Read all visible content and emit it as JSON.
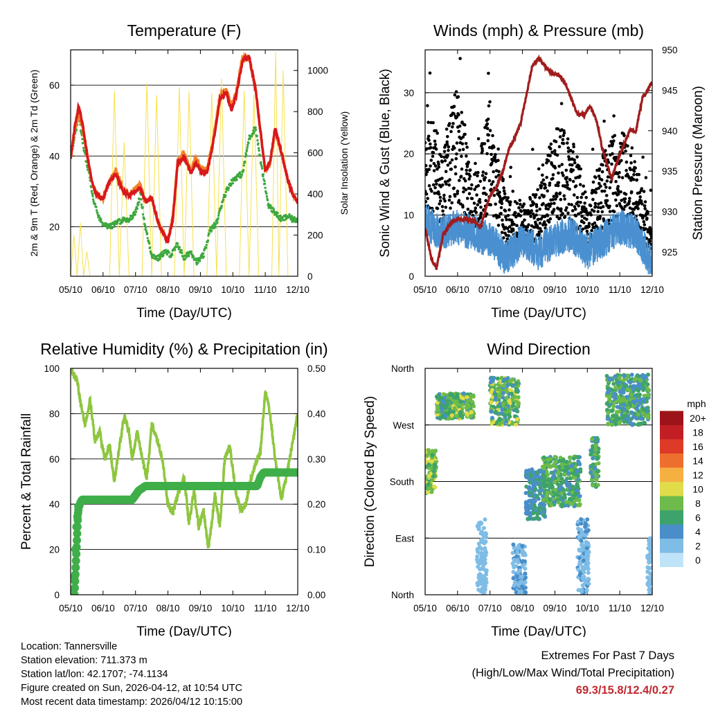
{
  "colors": {
    "temp_2m": "#d7191c",
    "temp_9m": "#f4802a",
    "dewpoint": "#3ea83e",
    "solar": "#f7e04a",
    "wind": "#4a90d0",
    "gust": "#000000",
    "pressure": "#a01c1c",
    "rh": "#8ec63f",
    "precip": "#3fae49"
  },
  "chart_data": [
    {
      "type": "line",
      "title": "Temperature (F)",
      "xlabel": "Time (Day/UTC)",
      "ylabel": "2m & 9m T (Red, Orange) & 2m Td (Green)",
      "y2label": "Solar Insolation (Yellow)",
      "xticks": [
        "05/10",
        "06/10",
        "07/10",
        "08/10",
        "09/10",
        "10/10",
        "11/10",
        "12/10"
      ],
      "xlim": [
        0,
        7
      ],
      "ylim": [
        6,
        70
      ],
      "yticks": [
        20,
        40,
        60
      ],
      "y2lim": [
        0,
        1100
      ],
      "y2ticks": [
        0,
        200,
        400,
        600,
        800,
        1000
      ],
      "series": [
        {
          "name": "2m T",
          "x": [
            0,
            0.12,
            0.25,
            0.35,
            0.5,
            0.65,
            0.8,
            1.0,
            1.2,
            1.4,
            1.6,
            1.8,
            2.0,
            2.15,
            2.3,
            2.5,
            2.7,
            2.85,
            3.0,
            3.15,
            3.3,
            3.5,
            3.7,
            3.85,
            4.0,
            4.2,
            4.4,
            4.6,
            4.8,
            4.95,
            5.1,
            5.3,
            5.5,
            5.7,
            5.85,
            6.0,
            6.15,
            6.3,
            6.5,
            6.7,
            6.85,
            7.0
          ],
          "values": [
            39,
            48,
            54,
            50,
            41,
            33,
            29,
            28,
            33,
            35,
            30,
            29,
            30,
            31,
            27,
            28,
            21,
            18,
            16,
            22,
            38,
            40,
            35,
            38,
            36,
            35,
            44,
            56,
            58,
            53,
            57,
            67,
            68,
            59,
            47,
            36,
            38,
            48,
            41,
            33,
            29,
            27
          ]
        },
        {
          "name": "9m T",
          "x": [
            0,
            0.12,
            0.25,
            0.35,
            0.5,
            0.65,
            0.8,
            1.0,
            1.2,
            1.4,
            1.6,
            1.8,
            2.0,
            2.15,
            2.3,
            2.5,
            2.7,
            2.85,
            3.0,
            3.15,
            3.3,
            3.5,
            3.7,
            3.85,
            4.0,
            4.2,
            4.4,
            4.6,
            4.8,
            4.95,
            5.1,
            5.3,
            5.5,
            5.7,
            5.85,
            6.0,
            6.15,
            6.3,
            6.5,
            6.7,
            6.85,
            7.0
          ],
          "values": [
            39,
            47,
            52,
            49,
            41,
            33,
            29,
            28,
            33,
            36,
            31,
            29,
            31,
            32,
            27,
            28,
            21,
            18,
            16,
            23,
            39,
            41,
            36,
            39,
            37,
            36,
            45,
            57,
            59,
            54,
            58,
            68,
            68,
            59,
            47,
            36,
            38,
            47,
            41,
            33,
            29,
            27
          ]
        },
        {
          "name": "2m Td",
          "x": [
            0,
            0.12,
            0.25,
            0.4,
            0.55,
            0.7,
            0.85,
            1.0,
            1.2,
            1.4,
            1.6,
            1.8,
            2.0,
            2.15,
            2.3,
            2.5,
            2.7,
            2.9,
            3.1,
            3.3,
            3.5,
            3.7,
            3.9,
            4.1,
            4.3,
            4.5,
            4.7,
            4.9,
            5.1,
            5.3,
            5.5,
            5.7,
            5.9,
            6.1,
            6.3,
            6.5,
            6.7,
            6.85,
            7.0
          ],
          "values": [
            40,
            45,
            52,
            42,
            36,
            28,
            23,
            21,
            20,
            21,
            22,
            22,
            24,
            29,
            20,
            12,
            11,
            13,
            12,
            15,
            11,
            13,
            10,
            12,
            19,
            21,
            28,
            32,
            34,
            35,
            45,
            48,
            36,
            26,
            24,
            22,
            23,
            22,
            22
          ]
        },
        {
          "name": "Solar Insolation",
          "axis": "y2",
          "x": [
            0,
            0.1,
            0.2,
            0.3,
            0.4,
            0.5,
            0.6,
            1.0,
            1.2,
            1.35,
            1.5,
            1.65,
            1.8,
            2.0,
            2.2,
            2.35,
            2.5,
            2.65,
            2.8,
            3.0,
            3.2,
            3.35,
            3.5,
            3.65,
            3.8,
            4.0,
            4.2,
            4.35,
            4.5,
            4.65,
            4.8,
            5.0,
            5.2,
            5.35,
            5.5,
            5.65,
            5.8,
            6.0,
            6.2,
            6.32,
            6.42,
            6.55,
            6.7,
            7.0
          ],
          "values": [
            0,
            200,
            0,
            260,
            0,
            120,
            0,
            0,
            0,
            900,
            0,
            650,
            0,
            0,
            0,
            940,
            0,
            880,
            0,
            0,
            0,
            920,
            0,
            900,
            0,
            0,
            0,
            890,
            0,
            960,
            0,
            0,
            0,
            900,
            0,
            880,
            0,
            0,
            0,
            1090,
            0,
            1000,
            0,
            0
          ]
        }
      ]
    },
    {
      "type": "scatter",
      "title": "Winds (mph) & Pressure (mb)",
      "xlabel": "Time (Day/UTC)",
      "ylabel": "Sonic Wind & Gust (Blue, Black)",
      "y2label": "Station Pressure (Maroon)",
      "xticks": [
        "05/10",
        "06/10",
        "07/10",
        "08/10",
        "09/10",
        "10/10",
        "11/10",
        "12/10"
      ],
      "xlim": [
        0,
        7
      ],
      "ylim": [
        0,
        37
      ],
      "yticks": [
        0,
        10,
        20,
        30
      ],
      "y2lim": [
        922,
        950
      ],
      "y2ticks": [
        925,
        930,
        935,
        940,
        945,
        950
      ],
      "series": [
        {
          "name": "Wind",
          "x": [
            0,
            0.5,
            1.0,
            1.5,
            2.0,
            2.5,
            3.0,
            3.5,
            4.0,
            4.5,
            5.0,
            5.5,
            6.0,
            6.5,
            7.0
          ],
          "values": [
            9,
            7,
            8,
            7,
            6,
            3,
            6,
            4,
            6,
            7,
            4,
            6,
            8,
            7,
            2
          ]
        },
        {
          "name": "Gust",
          "x": [
            0,
            0.5,
            1.0,
            1.5,
            2.0,
            2.5,
            3.0,
            3.5,
            4.0,
            4.5,
            5.0,
            5.5,
            6.0,
            6.5,
            7.0
          ],
          "values": [
            20,
            15,
            22,
            10,
            20,
            9,
            8,
            10,
            17,
            16,
            9,
            14,
            17,
            13,
            5
          ]
        },
        {
          "name": "Station Pressure",
          "axis": "y2",
          "x": [
            0,
            0.2,
            0.35,
            0.55,
            0.7,
            0.9,
            1.1,
            1.3,
            1.5,
            1.7,
            1.85,
            2.0,
            2.2,
            2.4,
            2.6,
            2.75,
            2.95,
            3.1,
            3.3,
            3.5,
            3.7,
            3.9,
            4.1,
            4.3,
            4.5,
            4.7,
            4.9,
            5.1,
            5.3,
            5.45,
            5.6,
            5.75,
            5.9,
            6.1,
            6.3,
            6.5,
            6.7,
            6.85,
            7.0
          ],
          "values": [
            928,
            924,
            923,
            927,
            928,
            929,
            929,
            929,
            929,
            928,
            930,
            932,
            933,
            935,
            938,
            939,
            941,
            944,
            948,
            949,
            948,
            947,
            947,
            946,
            944,
            942,
            942,
            943,
            941,
            938,
            936,
            934,
            936,
            938,
            940,
            940,
            944,
            945,
            946
          ]
        }
      ]
    },
    {
      "type": "line",
      "title": "Relative Humidity (%) & Precipitation (in)",
      "xlabel": "Time (Day/UTC)",
      "ylabel": "Percent & Total Rainfall",
      "xticks": [
        "05/10",
        "06/10",
        "07/10",
        "08/10",
        "09/10",
        "10/10",
        "11/10",
        "12/10"
      ],
      "xlim": [
        0,
        7
      ],
      "ylim": [
        0,
        100
      ],
      "yticks": [
        0,
        20,
        40,
        60,
        80,
        100
      ],
      "y2lim": [
        0,
        0.5
      ],
      "y2ticks": [
        "0.00",
        "0.10",
        "0.20",
        "0.30",
        "0.40",
        "0.50"
      ],
      "series": [
        {
          "name": "Relative Humidity",
          "x": [
            0,
            0.1,
            0.2,
            0.3,
            0.45,
            0.6,
            0.75,
            0.9,
            1.05,
            1.2,
            1.35,
            1.5,
            1.65,
            1.8,
            1.9,
            2.05,
            2.2,
            2.35,
            2.5,
            2.7,
            2.85,
            3.0,
            3.15,
            3.3,
            3.5,
            3.65,
            3.8,
            3.95,
            4.1,
            4.25,
            4.45,
            4.6,
            4.75,
            4.9,
            5.1,
            5.25,
            5.4,
            5.55,
            5.7,
            5.85,
            6.0,
            6.15,
            6.3,
            6.5,
            6.7,
            6.85,
            7.0
          ],
          "values": [
            100,
            97,
            95,
            85,
            75,
            86,
            68,
            72,
            60,
            66,
            50,
            65,
            79,
            72,
            60,
            72,
            61,
            51,
            75,
            67,
            58,
            40,
            36,
            44,
            52,
            31,
            46,
            30,
            37,
            20,
            44,
            30,
            60,
            66,
            45,
            37,
            40,
            51,
            58,
            63,
            90,
            80,
            60,
            42,
            56,
            68,
            80
          ]
        },
        {
          "name": "Total Precipitation",
          "axis": "y2",
          "x": [
            0,
            0.08,
            0.12,
            0.15,
            0.18,
            0.22,
            0.25,
            0.28,
            0.35,
            0.5,
            0.8,
            1.0,
            1.5,
            1.9,
            2.0,
            2.1,
            2.3,
            2.5,
            3.0,
            4.0,
            5.0,
            5.5,
            5.75,
            5.85,
            5.95,
            6.1,
            6.5,
            7.0
          ],
          "values": [
            0,
            0,
            0.04,
            0.1,
            0.15,
            0.18,
            0.19,
            0.2,
            0.21,
            0.21,
            0.21,
            0.21,
            0.21,
            0.21,
            0.22,
            0.23,
            0.24,
            0.24,
            0.24,
            0.24,
            0.24,
            0.24,
            0.24,
            0.26,
            0.27,
            0.27,
            0.27,
            0.27
          ]
        }
      ]
    },
    {
      "type": "scatter",
      "title": "Wind Direction",
      "xlabel": "Time (Day/UTC)",
      "ylabel": "Direction (Colored By Speed)",
      "xticks": [
        "05/10",
        "06/10",
        "07/10",
        "08/10",
        "09/10",
        "10/10",
        "11/10",
        "12/10"
      ],
      "xlim": [
        0,
        7
      ],
      "ylim": [
        0,
        360
      ],
      "ytick_labels": [
        "North",
        "East",
        "South",
        "West",
        "North"
      ],
      "ytick_values": [
        0,
        90,
        180,
        270,
        360
      ],
      "colorbar_title": "mph",
      "colorbar_labels": [
        "0",
        "2",
        "4",
        "6",
        "8",
        "10",
        "12",
        "14",
        "16",
        "18",
        "20+"
      ],
      "colorbar_colors": [
        "#bfe4f7",
        "#7fbde6",
        "#4a8ec9",
        "#3ea36a",
        "#6dbb4a",
        "#e0dc4a",
        "#f6b042",
        "#ee6f2d",
        "#dd3b28",
        "#c21f24",
        "#9c1419"
      ],
      "clusters": [
        {
          "x": [
            0.0,
            0.35
          ],
          "dir": [
            160,
            230
          ],
          "speed": [
            6,
            10
          ]
        },
        {
          "x": [
            0.35,
            1.5
          ],
          "dir": [
            280,
            320
          ],
          "speed": [
            4,
            10
          ]
        },
        {
          "x": [
            1.6,
            1.9
          ],
          "dir": [
            0,
            120
          ],
          "speed": [
            1,
            3
          ]
        },
        {
          "x": [
            2.0,
            2.9
          ],
          "dir": [
            270,
            345
          ],
          "speed": [
            4,
            10
          ]
        },
        {
          "x": [
            2.7,
            3.1
          ],
          "dir": [
            0,
            80
          ],
          "speed": [
            2,
            4
          ]
        },
        {
          "x": [
            3.1,
            3.7
          ],
          "dir": [
            120,
            200
          ],
          "speed": [
            3,
            6
          ]
        },
        {
          "x": [
            3.6,
            4.8
          ],
          "dir": [
            140,
            220
          ],
          "speed": [
            4,
            9
          ]
        },
        {
          "x": [
            4.7,
            5.05
          ],
          "dir": [
            0,
            120
          ],
          "speed": [
            1,
            4
          ]
        },
        {
          "x": [
            5.1,
            5.35
          ],
          "dir": [
            170,
            250
          ],
          "speed": [
            4,
            8
          ]
        },
        {
          "x": [
            5.6,
            6.9
          ],
          "dir": [
            270,
            350
          ],
          "speed": [
            3,
            9
          ]
        },
        {
          "x": [
            6.85,
            7.0
          ],
          "dir": [
            0,
            90
          ],
          "speed": [
            1,
            3
          ]
        }
      ]
    }
  ],
  "station_info": {
    "location": "Location: Tannersville",
    "elevation": "Station elevation: 711.373 m",
    "latlon": "Station lat/lon: 42.1707; -74.1134",
    "created": "Figure created on Sun, 2026-04-12, at 10:54 UTC",
    "recent": "Most recent data timestamp: 2026/04/12 10:15:00"
  },
  "extremes": {
    "title": "Extremes For Past 7 Days",
    "subtitle": "(High/Low/Max Wind/Total Precipitation)",
    "values": "69.3/15.8/12.4/0.27"
  }
}
